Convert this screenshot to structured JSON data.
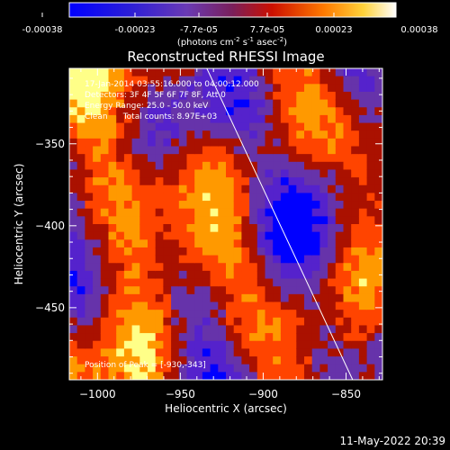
{
  "colorbar": {
    "tick_labels": [
      "-0.00038",
      "-0.00023",
      "-7.7e-05",
      "7.7e-05",
      "0.00023",
      "0.00038"
    ],
    "unit_prefix": "(photons cm",
    "unit_exp1": "-2",
    "unit_mid": " s",
    "unit_exp2": "-1",
    "unit_mid2": " asec",
    "unit_exp3": "-2",
    "unit_suffix": ")",
    "range": [
      -0.00038,
      0.00038
    ]
  },
  "chart_data": {
    "type": "heatmap",
    "title": "Reconstructed RHESSI Image",
    "xlabel": "Heliocentric X (arcsec)",
    "ylabel": "Heliocentric Y (arcsec)",
    "xlim": [
      -1017,
      -828
    ],
    "ylim": [
      -494,
      -304
    ],
    "x_ticks": [
      -1000,
      -950,
      -900,
      -850
    ],
    "y_ticks": [
      -450,
      -400,
      -350
    ],
    "limb_line": {
      "x": [
        -934,
        -846
      ],
      "y": [
        -304,
        -494
      ],
      "color": "#ffffff"
    },
    "grid": false,
    "colormap": [
      "#0000ff",
      "#5522cc",
      "#6633aa",
      "#aa1100",
      "#ff4400",
      "#ff9900",
      "#ffff88"
    ]
  },
  "annotations": {
    "line1": "17-Jan-2014 03:55:16.000 to 04:00:12.000",
    "line2": "Detectors: 3F 4F 5F 6F 7F 8F, Att 0",
    "line3": "Energy Range: 25.0 - 50.0 keV",
    "line4": "Clean      Total counts: 8.97E+03",
    "peak": "Position of Peak = [-930,-343]"
  },
  "timestamp": "11-May-2022 20:39"
}
